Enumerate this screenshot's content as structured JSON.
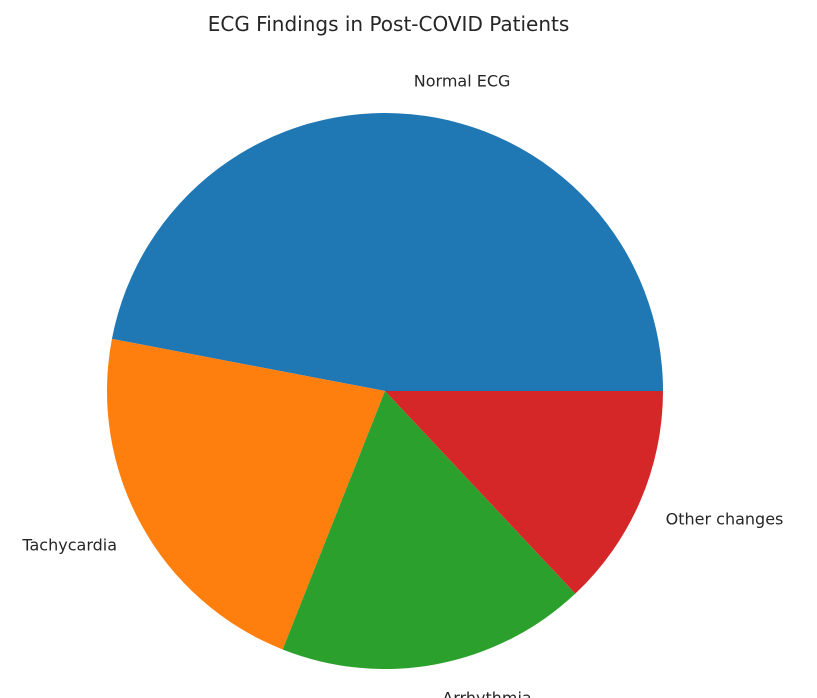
{
  "chart_data": {
    "type": "pie",
    "title": "ECG Findings in Post-COVID Patients",
    "slices": [
      {
        "label": "Normal ECG",
        "value": 47,
        "color": "#1f77b4"
      },
      {
        "label": "Tachycardia",
        "value": 22,
        "color": "#ff7f0e"
      },
      {
        "label": "Arrhythmia",
        "value": 18,
        "color": "#2ca02c"
      },
      {
        "label": "Other changes",
        "value": 13,
        "color": "#d62728"
      }
    ],
    "start_angle_deg": 0,
    "direction": "counterclockwise",
    "legend": false
  }
}
